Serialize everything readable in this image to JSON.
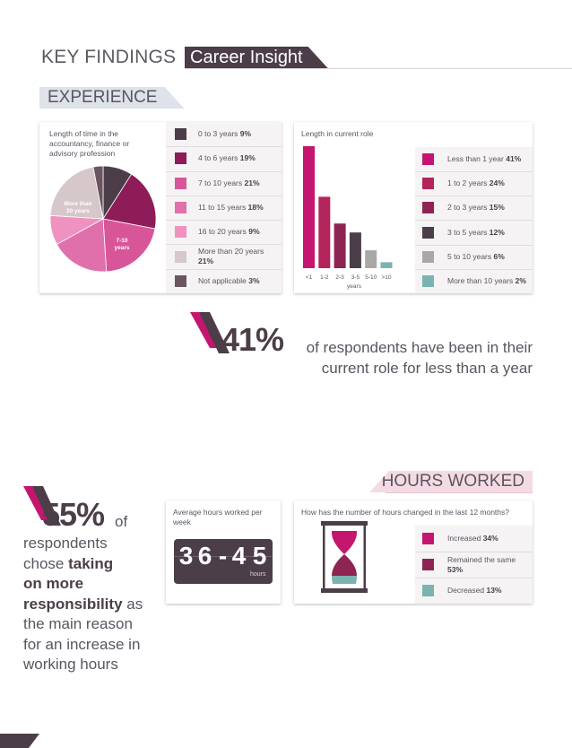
{
  "header": {
    "title": "KEY FINDINGS",
    "tag": "Career Insight"
  },
  "section_experience": {
    "label": "EXPERIENCE"
  },
  "section_hours": {
    "label": "HOURS WORKED"
  },
  "colors": {
    "dark": "#4b3e48",
    "maroon": "#8e1c58",
    "magenta": "#c4166e",
    "pink": "#d9559a",
    "light_pink": "#ea86b7",
    "blush": "#d6c7cb",
    "deep": "#6a4b5e",
    "grey": "#a8a8a8",
    "teal": "#7bb3b0"
  },
  "chart_data": [
    {
      "type": "pie",
      "title": "Length of time in the accountancy, finance or advisory profession",
      "slices": [
        {
          "label": "0 to 3 years",
          "value": 9,
          "color": "#4b3e48"
        },
        {
          "label": "4 to 6 years",
          "value": 19,
          "color": "#8e1c58"
        },
        {
          "label": "7 to 10 years",
          "value": 21,
          "color": "#d9559a"
        },
        {
          "label": "11 to 15 years",
          "value": 18,
          "color": "#e070ac"
        },
        {
          "label": "16 to 20 years",
          "value": 9,
          "color": "#f092c0"
        },
        {
          "label": "More than 20 years",
          "value": 21,
          "color": "#d6c7cb"
        },
        {
          "label": "Not applicable",
          "value": 3,
          "color": "#6a5560"
        }
      ],
      "inner_labels": {
        "more_than_20": "More than 20 years",
        "seven_ten": "7-10 years"
      }
    },
    {
      "type": "bar",
      "title": "Length in current role",
      "categories": [
        "<1",
        "1-2",
        "2-3",
        "3-5",
        "5-10",
        ">10"
      ],
      "values": [
        41,
        24,
        15,
        12,
        6,
        2
      ],
      "xlabel": "years",
      "ylim": [
        0,
        41
      ],
      "colors": [
        "#c4166e",
        "#b3245a",
        "#8e2452",
        "#4b3e48",
        "#a8a8a8",
        "#7bb3b0"
      ],
      "legend": [
        {
          "label": "Less than 1 year",
          "value": "41%"
        },
        {
          "label": "1 to 2 years",
          "value": "24%"
        },
        {
          "label": "2 to 3 years",
          "value": "15%"
        },
        {
          "label": "3 to 5 years",
          "value": "12%"
        },
        {
          "label": "5 to 10 years",
          "value": "6%"
        },
        {
          "label": "More than 10 years",
          "value": "2%"
        }
      ]
    },
    {
      "type": "pie",
      "title": "How has the number of hours changed in the last 12 months?",
      "slices": [
        {
          "label": "Increased",
          "value": 34,
          "color": "#c4166e"
        },
        {
          "label": "Remained the same",
          "value": 53,
          "color": "#8e2452"
        },
        {
          "label": "Decreased",
          "value": 13,
          "color": "#7bb3b0"
        }
      ]
    }
  ],
  "pie_legend_pct": [
    "9%",
    "19%",
    "21%",
    "18%",
    "9%",
    "21%",
    "3%"
  ],
  "callout_41": {
    "figure": "41%",
    "line1": "of respondents have been in their",
    "line2": "current role for less than a year"
  },
  "callout_55": {
    "figure": "55%",
    "of": "of",
    "l1": "respondents",
    "l2a": "chose ",
    "l2b": "taking",
    "l3": "on more",
    "l4a": "responsibility",
    "l4b": " as",
    "l5": "the main reason",
    "l6": "for an increase in",
    "l7": "working hours"
  },
  "avg_hours": {
    "title": "Average hours worked per week",
    "digits": [
      "3",
      "6",
      "-",
      "4",
      "5"
    ],
    "unit": "hours"
  },
  "hours_legend_pct": [
    "34%",
    "53%",
    "13%"
  ]
}
